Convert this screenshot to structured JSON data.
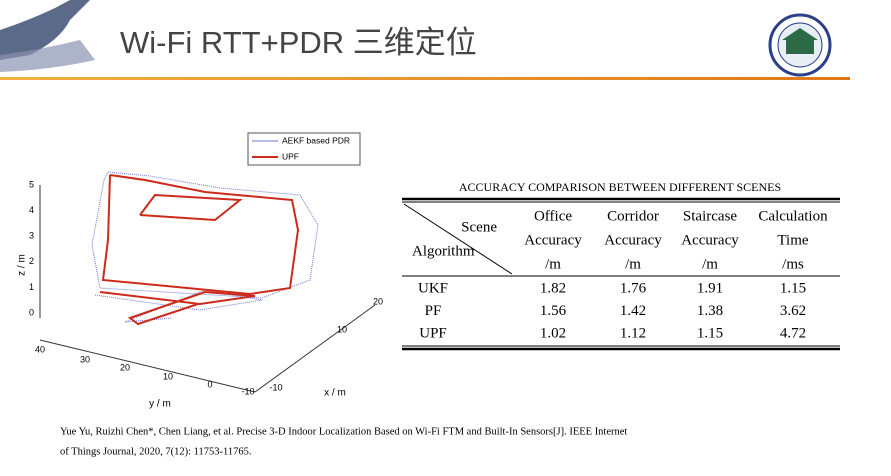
{
  "header": {
    "title": "Wi-Fi RTT+PDR 三维定位"
  },
  "figure": {
    "legend": [
      "AEKF based PDR",
      "UPF"
    ],
    "z_label": "z / m",
    "y_label": "y / m",
    "x_label": "x / m",
    "z_ticks": [
      0,
      1,
      2,
      3,
      4,
      5
    ],
    "y_ticks": [
      40,
      30,
      20,
      10,
      0,
      -10
    ],
    "x_ticks": [
      -10,
      10,
      20
    ]
  },
  "table": {
    "caption": "ACCURACY COMPARISON BETWEEN DIFFERENT SCENES",
    "corner": [
      "Scene",
      "Algorithm"
    ],
    "columns": [
      [
        "Office",
        "Accuracy",
        "/m"
      ],
      [
        "Corridor",
        "Accuracy",
        "/m"
      ],
      [
        "Staircase",
        "Accuracy",
        "/m"
      ],
      [
        "Calculation",
        "Time",
        "/ms"
      ]
    ],
    "rows": [
      [
        "UKF",
        1.82,
        1.76,
        1.91,
        1.15
      ],
      [
        "PF",
        1.56,
        1.42,
        1.38,
        3.62
      ],
      [
        "UPF",
        1.02,
        1.12,
        1.15,
        4.72
      ]
    ]
  },
  "citation": [
    "Yue Yu, Ruizhi Chen*, Chen Liang, et al. Precise 3-D Indoor Localization Based on Wi-Fi FTM and Built-In Sensors[J]. IEEE Internet",
    "of Things Journal, 2020, 7(12): 11753-11765."
  ]
}
